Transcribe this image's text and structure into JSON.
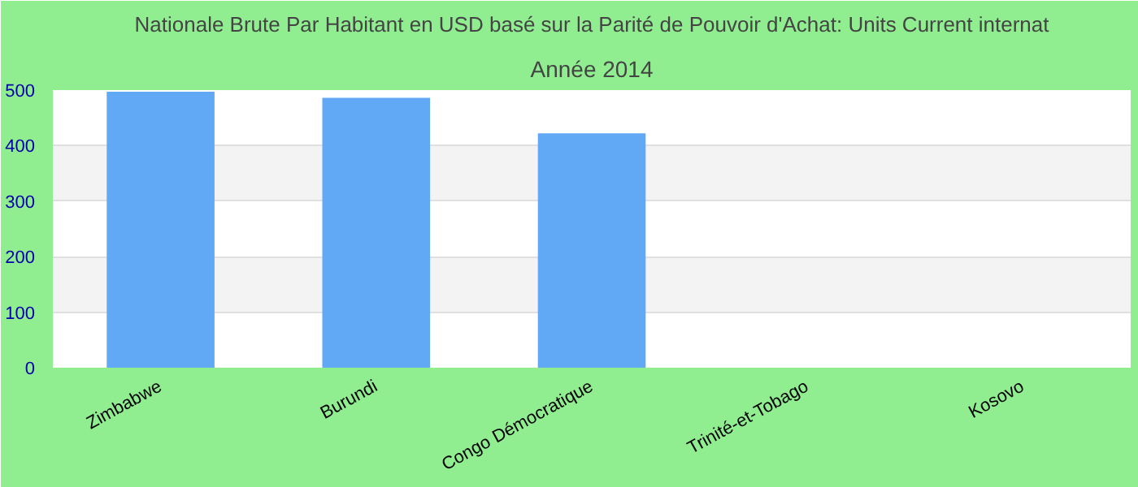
{
  "chart_data": {
    "type": "bar",
    "title": "Nationale Brute Par Habitant en USD basé sur la Parité de Pouvoir d'Achat: Units Current internat",
    "subtitle": "Année 2014",
    "categories": [
      "Zimbabwe",
      "Burundi",
      "Congo Démocratique",
      "Trinité-et-Tobago",
      "Kosovo"
    ],
    "values": [
      497,
      486,
      422,
      null,
      null
    ],
    "color": "#61a8f5",
    "ylim": [
      0,
      500
    ],
    "yticks": [
      0,
      100,
      200,
      300,
      400,
      500
    ],
    "grid": "y"
  }
}
